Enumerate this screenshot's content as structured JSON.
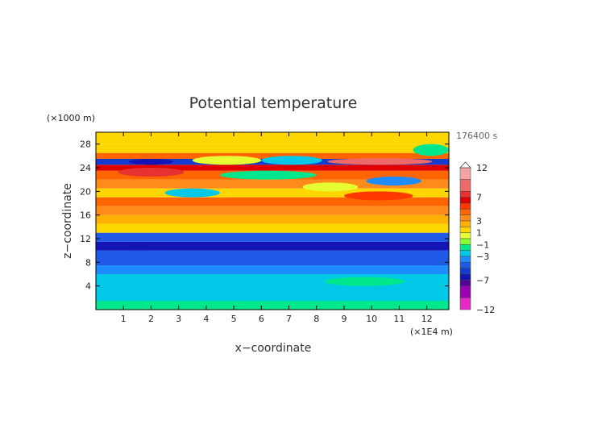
{
  "chart_data": {
    "type": "heatmap",
    "title": "Potential temperature",
    "xlabel": "x−coordinate",
    "ylabel": "z−coordinate",
    "x_unit": "(×1E4 m)",
    "y_unit": "(×1000 m)",
    "time_label": "176400 s",
    "xlim": [
      0,
      12.8
    ],
    "ylim": [
      0,
      30
    ],
    "x_ticks": [
      "1",
      "2",
      "3",
      "4",
      "5",
      "6",
      "7",
      "8",
      "9",
      "10",
      "11",
      "12"
    ],
    "y_ticks": [
      "4",
      "8",
      "12",
      "16",
      "20",
      "24",
      "28"
    ],
    "colorbar": {
      "labels": [
        "12",
        "7",
        "3",
        "1",
        "−1",
        "−3",
        "−7",
        "−12"
      ],
      "levels": [
        12,
        10,
        8,
        7,
        6,
        5,
        4,
        3,
        2,
        1,
        0,
        -1,
        -2,
        -3,
        -4,
        -5,
        -6,
        -7,
        -8,
        -10,
        -12
      ],
      "colors": [
        "#f4a4a4",
        "#ee6a6a",
        "#e83232",
        "#e00000",
        "#ff3800",
        "#ff6600",
        "#ff8c1a",
        "#ffb000",
        "#ffd700",
        "#e6ff33",
        "#8cff33",
        "#00e68c",
        "#00c8e6",
        "#1e8cff",
        "#1e5ae6",
        "#143ccd",
        "#1414b4",
        "#50009b",
        "#9b00b4",
        "#e628c8"
      ]
    },
    "bands": [
      {
        "z": [
          0,
          1.5
        ],
        "value": -1.5
      },
      {
        "z": [
          1.5,
          6
        ],
        "value": -2
      },
      {
        "z": [
          6,
          7.5
        ],
        "value": -3.5
      },
      {
        "z": [
          7.5,
          10
        ],
        "value": -4.5
      },
      {
        "z": [
          10,
          11.5
        ],
        "value": -6
      },
      {
        "z": [
          11.5,
          13
        ],
        "value": -4.5
      },
      {
        "z": [
          13,
          14.5
        ],
        "value": 1.5
      },
      {
        "z": [
          14.5,
          16
        ],
        "value": 2.5
      },
      {
        "z": [
          16,
          17.5
        ],
        "value": 3.5
      },
      {
        "z": [
          17.5,
          19
        ],
        "value": 4.5
      },
      {
        "z": [
          19,
          20.5
        ],
        "value": 2
      },
      {
        "z": [
          20.5,
          22
        ],
        "value": 3.5
      },
      {
        "z": [
          22,
          23.5
        ],
        "value": 5
      },
      {
        "z": [
          23.5,
          24.5
        ],
        "value": 6.5
      },
      {
        "z": [
          24.5,
          25.5
        ],
        "value": -5
      },
      {
        "z": [
          25.5,
          26.5
        ],
        "value": 4.5
      },
      {
        "z": [
          26.5,
          28
        ],
        "value": 2
      },
      {
        "z": [
          28,
          30
        ],
        "value": 1.5
      }
    ],
    "patches": [
      {
        "x": [
          0.8,
          3.2
        ],
        "z": [
          22.5,
          24
        ],
        "value": 7.5
      },
      {
        "x": [
          1.2,
          2.8
        ],
        "z": [
          24.5,
          25.5
        ],
        "value": -6.5
      },
      {
        "x": [
          8.4,
          12.2
        ],
        "z": [
          24.5,
          25.6
        ],
        "value": 8.5
      },
      {
        "x": [
          3.5,
          6
        ],
        "z": [
          24.5,
          26
        ],
        "value": 1
      },
      {
        "x": [
          6,
          8.2
        ],
        "z": [
          24.5,
          26
        ],
        "value": -2
      },
      {
        "x": [
          4.5,
          8
        ],
        "z": [
          22,
          23.5
        ],
        "value": -1
      },
      {
        "x": [
          7.5,
          9.5
        ],
        "z": [
          20,
          21.5
        ],
        "value": 1
      },
      {
        "x": [
          9.8,
          11.8
        ],
        "z": [
          21,
          22.5
        ],
        "value": -3
      },
      {
        "x": [
          2.5,
          4.5
        ],
        "z": [
          19,
          20.5
        ],
        "value": -2
      },
      {
        "x": [
          9,
          11.5
        ],
        "z": [
          18.5,
          20
        ],
        "value": 6
      },
      {
        "x": [
          0.2,
          3
        ],
        "z": [
          10,
          11.2
        ],
        "value": -6.5
      },
      {
        "x": [
          10.2,
          12.8
        ],
        "z": [
          10.2,
          11.4
        ],
        "value": -6.5
      },
      {
        "x": [
          8.3,
          11.2
        ],
        "z": [
          4,
          5.5
        ],
        "value": -1
      },
      {
        "x": [
          11.5,
          12.8
        ],
        "z": [
          26,
          28
        ],
        "value": -1
      }
    ]
  }
}
